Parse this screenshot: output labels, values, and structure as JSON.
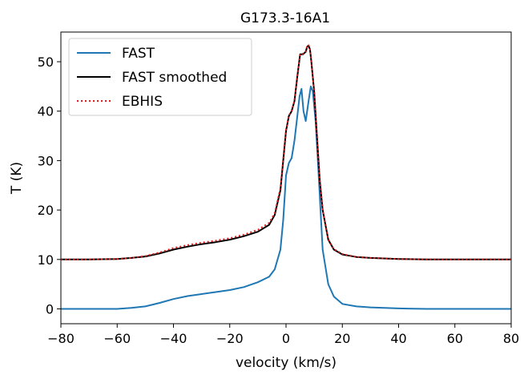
{
  "chart_data": {
    "type": "line",
    "title": "G173.3-16A1",
    "xlabel": "velocity (km/s)",
    "ylabel": "T (K)",
    "xlim": [
      -80,
      80
    ],
    "ylim": [
      -3,
      56
    ],
    "xticks": [
      -80,
      -60,
      -40,
      -20,
      0,
      20,
      40,
      60,
      80
    ],
    "xtick_labels": [
      "−80",
      "−60",
      "−40",
      "−20",
      "0",
      "20",
      "40",
      "60",
      "80"
    ],
    "yticks": [
      0,
      10,
      20,
      30,
      40,
      50
    ],
    "ytick_labels": [
      "0",
      "10",
      "20",
      "30",
      "40",
      "50"
    ],
    "grid": false,
    "legend_position": "top-left",
    "series": [
      {
        "name": "FAST",
        "color": "#1f77b4",
        "style": "solid",
        "x": [
          -80,
          -70,
          -60,
          -55,
          -50,
          -45,
          -40,
          -35,
          -30,
          -25,
          -20,
          -15,
          -10,
          -6,
          -4,
          -2,
          -1,
          0,
          1,
          2,
          3,
          4,
          4.8,
          5.5,
          6.2,
          7,
          8,
          8.8,
          9.5,
          10.5,
          11.5,
          13,
          15,
          17,
          20,
          25,
          30,
          40,
          50,
          60,
          70,
          80
        ],
        "y": [
          0,
          0,
          0,
          0.2,
          0.5,
          1.2,
          2.0,
          2.6,
          3.0,
          3.4,
          3.8,
          4.4,
          5.4,
          6.5,
          8.0,
          12.0,
          18.0,
          27.0,
          29.5,
          30.5,
          34.0,
          39.0,
          43.0,
          44.5,
          40.0,
          38.0,
          42.0,
          45.0,
          44.0,
          38.0,
          28.0,
          12.0,
          5.0,
          2.5,
          1.0,
          0.5,
          0.3,
          0.1,
          0,
          0,
          0,
          0
        ]
      },
      {
        "name": "FAST smoothed",
        "color": "#000000",
        "style": "solid",
        "x": [
          -80,
          -70,
          -60,
          -55,
          -50,
          -45,
          -40,
          -35,
          -30,
          -25,
          -20,
          -15,
          -10,
          -6,
          -4,
          -2,
          -1,
          0,
          1,
          2,
          3,
          4,
          5,
          6,
          7,
          7.5,
          8,
          8.5,
          9,
          10,
          11,
          12,
          13,
          15,
          17,
          20,
          25,
          30,
          40,
          50,
          60,
          70,
          80
        ],
        "y": [
          10,
          10,
          10.1,
          10.3,
          10.6,
          11.2,
          12.0,
          12.6,
          13.1,
          13.5,
          14.0,
          14.7,
          15.6,
          17.0,
          19.0,
          24.0,
          30.0,
          36.0,
          39.0,
          40.0,
          42.0,
          47.0,
          51.5,
          51.5,
          52.0,
          53.0,
          53.3,
          52.5,
          50.0,
          44.0,
          35.0,
          26.0,
          20.0,
          14.0,
          12.0,
          11.0,
          10.5,
          10.3,
          10.1,
          10.0,
          10.0,
          10.0,
          10.0
        ]
      },
      {
        "name": "EBHIS",
        "color": "#e31a1c",
        "style": "dotted",
        "x": [
          -80,
          -70,
          -60,
          -55,
          -50,
          -45,
          -40,
          -35,
          -30,
          -25,
          -20,
          -15,
          -10,
          -6,
          -4,
          -2,
          -1,
          0,
          1,
          2,
          3,
          4,
          5,
          6,
          7,
          7.5,
          8,
          8.5,
          9,
          10,
          11,
          12,
          13,
          15,
          17,
          20,
          25,
          30,
          40,
          50,
          60,
          70,
          80
        ],
        "y": [
          10,
          10,
          10.1,
          10.3,
          10.7,
          11.4,
          12.3,
          12.9,
          13.4,
          13.8,
          14.3,
          15.0,
          16.0,
          17.4,
          19.4,
          24.4,
          30.3,
          36.2,
          39.1,
          40.1,
          42.1,
          47.1,
          51.6,
          51.6,
          52.1,
          53.1,
          53.4,
          52.6,
          50.1,
          44.1,
          35.1,
          26.1,
          20.1,
          14.1,
          12.1,
          11.1,
          10.5,
          10.3,
          10.1,
          10.0,
          10.0,
          10.0,
          10.0
        ]
      }
    ]
  }
}
